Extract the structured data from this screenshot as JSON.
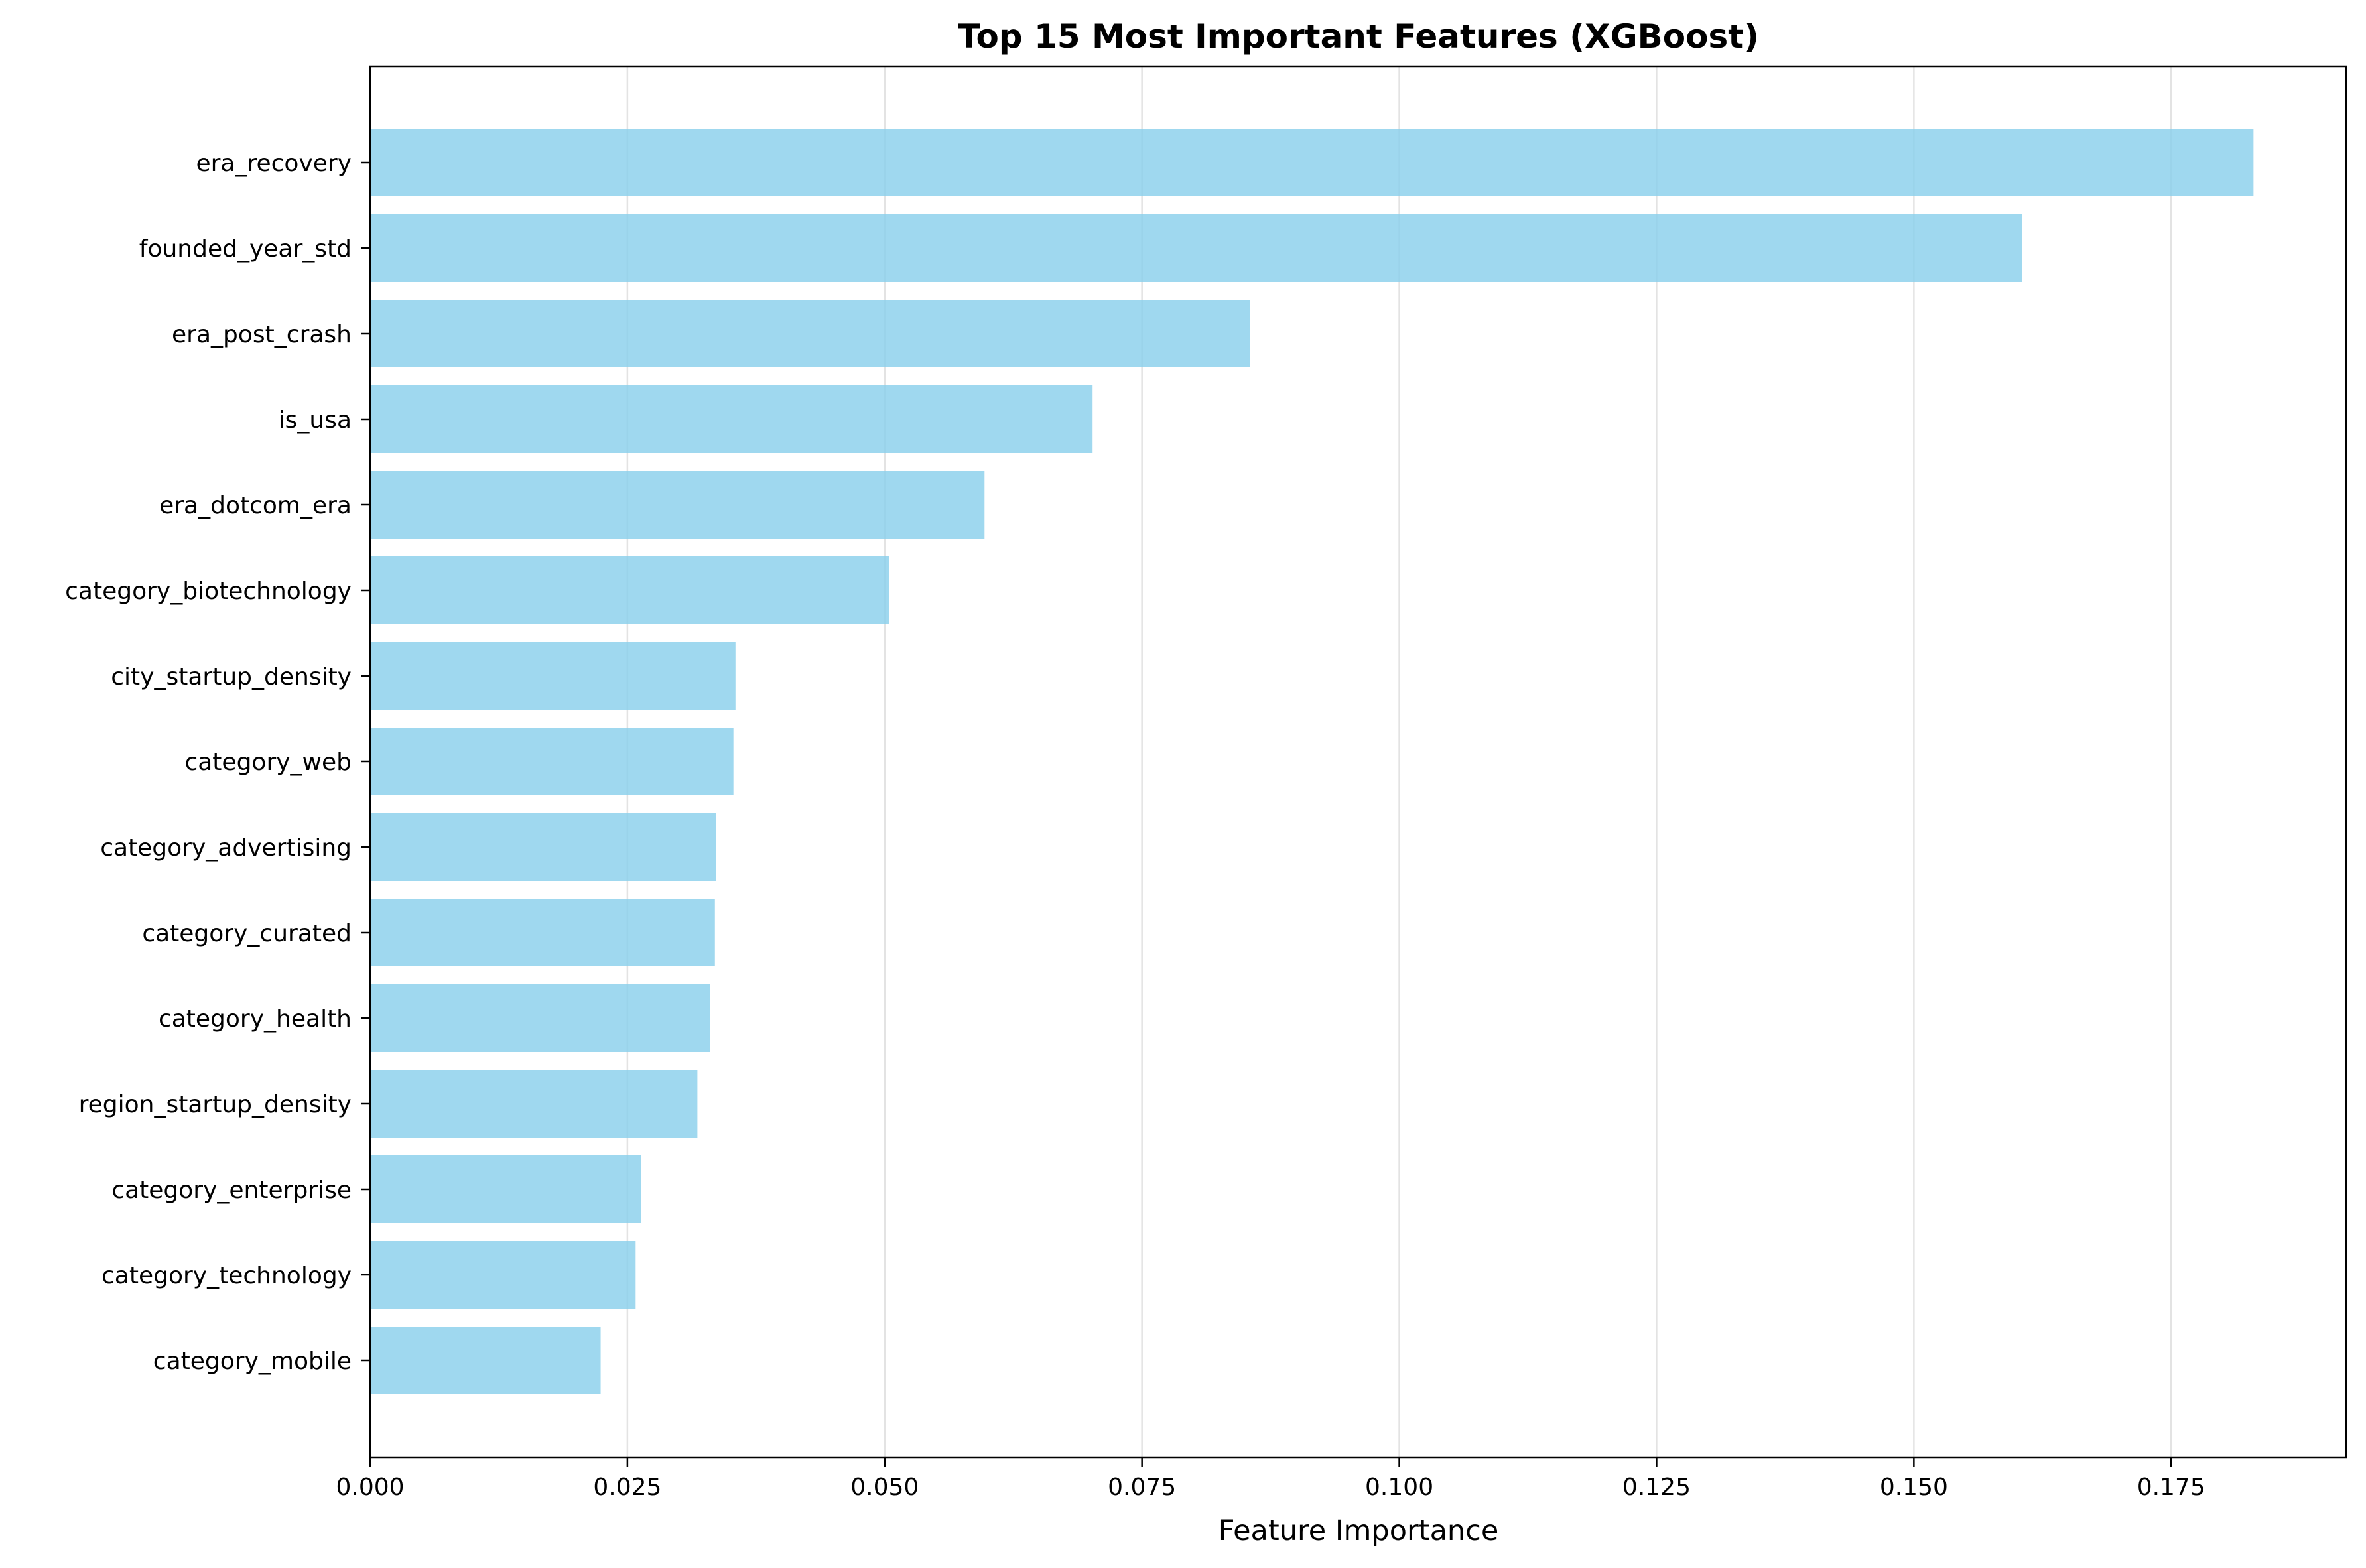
{
  "chart_data": {
    "type": "bar",
    "orientation": "horizontal",
    "title": "Top 15 Most Important Features (XGBoost)",
    "xlabel": "Feature Importance",
    "ylabel": "",
    "xlim": [
      0,
      0.192
    ],
    "xticks": [
      "0.000",
      "0.025",
      "0.050",
      "0.075",
      "0.100",
      "0.125",
      "0.150",
      "0.175"
    ],
    "xtick_values": [
      0,
      0.025,
      0.05,
      0.075,
      0.1,
      0.125,
      0.15,
      0.175
    ],
    "grid": "vertical",
    "bar_color": "#87ceeb",
    "categories": [
      "era_recovery",
      "founded_year_std",
      "era_post_crash",
      "is_usa",
      "era_dotcom_era",
      "category_biotechnology",
      "city_startup_density",
      "category_web",
      "category_advertising",
      "category_curated",
      "category_health",
      "region_startup_density",
      "category_enterprise",
      "category_technology",
      "category_mobile"
    ],
    "values": [
      0.183,
      0.1605,
      0.0855,
      0.0702,
      0.0597,
      0.0504,
      0.0355,
      0.0353,
      0.0336,
      0.0335,
      0.033,
      0.0318,
      0.0263,
      0.0258,
      0.0224
    ]
  }
}
